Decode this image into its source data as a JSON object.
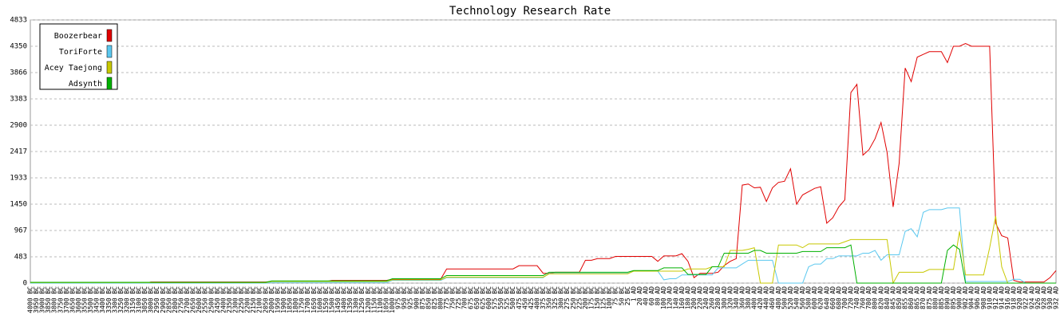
{
  "chart_data": {
    "type": "line",
    "title": "Technology Research Rate",
    "categories": [
      "4000 BC",
      "3950 BC",
      "3900 BC",
      "3850 BC",
      "3800 BC",
      "3750 BC",
      "3700 BC",
      "3650 BC",
      "3600 BC",
      "3550 BC",
      "3500 BC",
      "3450 BC",
      "3400 BC",
      "3350 BC",
      "3300 BC",
      "3250 BC",
      "3200 BC",
      "3150 BC",
      "3100 BC",
      "3050 BC",
      "3000 BC",
      "2950 BC",
      "2900 BC",
      "2850 BC",
      "2800 BC",
      "2750 BC",
      "2700 BC",
      "2650 BC",
      "2600 BC",
      "2550 BC",
      "2500 BC",
      "2450 BC",
      "2400 BC",
      "2350 BC",
      "2300 BC",
      "2250 BC",
      "2200 BC",
      "2150 BC",
      "2100 BC",
      "2050 BC",
      "2000 BC",
      "1950 BC",
      "1900 BC",
      "1850 BC",
      "1800 BC",
      "1750 BC",
      "1700 BC",
      "1650 BC",
      "1600 BC",
      "1550 BC",
      "1500 BC",
      "1450 BC",
      "1400 BC",
      "1350 BC",
      "1300 BC",
      "1250 BC",
      "1200 BC",
      "1150 BC",
      "1100 BC",
      "1050 BC",
      "1000 BC",
      "975 BC",
      "950 BC",
      "925 BC",
      "900 BC",
      "875 BC",
      "850 BC",
      "825 BC",
      "800 BC",
      "775 BC",
      "750 BC",
      "725 BC",
      "700 BC",
      "675 BC",
      "650 BC",
      "625 BC",
      "600 BC",
      "575 BC",
      "550 BC",
      "525 BC",
      "500 BC",
      "475 BC",
      "450 BC",
      "425 BC",
      "400 BC",
      "375 BC",
      "350 BC",
      "325 BC",
      "300 BC",
      "275 BC",
      "250 BC",
      "225 BC",
      "200 BC",
      "175 BC",
      "150 BC",
      "125 BC",
      "100 BC",
      "75 BC",
      "50 BC",
      "25 BC",
      "1 AD",
      "20 AD",
      "40 AD",
      "60 AD",
      "80 AD",
      "100 AD",
      "120 AD",
      "140 AD",
      "160 AD",
      "180 AD",
      "200 AD",
      "220 AD",
      "240 AD",
      "260 AD",
      "280 AD",
      "300 AD",
      "320 AD",
      "340 AD",
      "360 AD",
      "380 AD",
      "400 AD",
      "420 AD",
      "440 AD",
      "460 AD",
      "480 AD",
      "500 AD",
      "520 AD",
      "540 AD",
      "560 AD",
      "580 AD",
      "600 AD",
      "620 AD",
      "640 AD",
      "660 AD",
      "680 AD",
      "700 AD",
      "720 AD",
      "740 AD",
      "760 AD",
      "780 AD",
      "800 AD",
      "820 AD",
      "840 AD",
      "845 AD",
      "850 AD",
      "855 AD",
      "860 AD",
      "865 AD",
      "870 AD",
      "875 AD",
      "880 AD",
      "885 AD",
      "890 AD",
      "895 AD",
      "900 AD",
      "902 AD",
      "904 AD",
      "906 AD",
      "908 AD",
      "910 AD",
      "912 AD",
      "914 AD",
      "916 AD",
      "918 AD",
      "920 AD",
      "922 AD",
      "924 AD",
      "926 AD",
      "928 AD",
      "930 AD",
      "932 AD"
    ],
    "series": [
      {
        "name": "Boozerbear",
        "color": "#e00000",
        "values": [
          0,
          0,
          0,
          0,
          0,
          0,
          0,
          0,
          0,
          0,
          0,
          0,
          0,
          0,
          0,
          0,
          0,
          0,
          0,
          0,
          20,
          20,
          20,
          20,
          20,
          20,
          20,
          20,
          20,
          20,
          20,
          20,
          20,
          20,
          20,
          20,
          20,
          20,
          20,
          20,
          30,
          30,
          30,
          30,
          30,
          30,
          30,
          30,
          30,
          30,
          50,
          50,
          50,
          50,
          50,
          50,
          50,
          50,
          50,
          50,
          70,
          70,
          70,
          70,
          70,
          70,
          70,
          70,
          70,
          260,
          260,
          260,
          260,
          260,
          260,
          260,
          260,
          260,
          260,
          260,
          260,
          320,
          320,
          320,
          320,
          180,
          180,
          200,
          200,
          200,
          200,
          200,
          420,
          420,
          450,
          450,
          450,
          490,
          490,
          490,
          490,
          490,
          490,
          490,
          400,
          500,
          500,
          500,
          540,
          400,
          100,
          180,
          180,
          180,
          200,
          320,
          400,
          450,
          1800,
          1820,
          1750,
          1760,
          1500,
          1750,
          1850,
          1870,
          2100,
          1450,
          1620,
          1680,
          1740,
          1770,
          1100,
          1200,
          1400,
          1530,
          3500,
          3650,
          2350,
          2450,
          2650,
          2950,
          2400,
          1400,
          2200,
          3950,
          3700,
          4150,
          4200,
          4250,
          4250,
          4250,
          4050,
          4350,
          4350,
          4400,
          4350,
          4350,
          4350,
          4350,
          1100,
          870,
          830,
          50,
          20,
          20,
          20,
          20,
          20,
          100,
          230
        ]
      },
      {
        "name": "ToriForte",
        "color": "#5bc8ef",
        "values": [
          0,
          0,
          0,
          0,
          0,
          0,
          0,
          0,
          0,
          0,
          0,
          0,
          0,
          0,
          0,
          0,
          0,
          0,
          0,
          0,
          0,
          0,
          0,
          0,
          0,
          0,
          0,
          0,
          0,
          0,
          0,
          0,
          0,
          0,
          0,
          0,
          0,
          0,
          0,
          0,
          10,
          10,
          10,
          10,
          10,
          10,
          10,
          10,
          10,
          10,
          10,
          10,
          10,
          10,
          10,
          10,
          10,
          10,
          10,
          10,
          50,
          50,
          50,
          50,
          50,
          50,
          50,
          50,
          50,
          100,
          100,
          100,
          100,
          100,
          100,
          100,
          100,
          100,
          100,
          100,
          100,
          100,
          100,
          100,
          100,
          100,
          180,
          180,
          180,
          180,
          180,
          180,
          180,
          180,
          180,
          180,
          180,
          180,
          180,
          180,
          220,
          220,
          220,
          220,
          220,
          60,
          80,
          80,
          150,
          150,
          150,
          150,
          150,
          150,
          280,
          280,
          280,
          280,
          350,
          420,
          420,
          420,
          420,
          420,
          0,
          0,
          0,
          0,
          0,
          300,
          350,
          350,
          450,
          450,
          500,
          500,
          500,
          500,
          550,
          550,
          600,
          420,
          520,
          520,
          520,
          950,
          1000,
          850,
          1300,
          1350,
          1350,
          1350,
          1380,
          1380,
          1380,
          30,
          30,
          30,
          30,
          30,
          30,
          30,
          30,
          70,
          70,
          0,
          0,
          0,
          0,
          0,
          0
        ]
      },
      {
        "name": "Acey Taejong",
        "color": "#c8c800",
        "values": [
          10,
          10,
          10,
          10,
          10,
          10,
          10,
          10,
          10,
          10,
          10,
          10,
          10,
          10,
          10,
          10,
          10,
          10,
          10,
          10,
          10,
          10,
          10,
          10,
          10,
          10,
          10,
          10,
          10,
          10,
          10,
          10,
          10,
          10,
          10,
          10,
          10,
          10,
          10,
          10,
          30,
          30,
          30,
          30,
          30,
          30,
          30,
          30,
          30,
          30,
          30,
          30,
          30,
          30,
          30,
          30,
          30,
          30,
          30,
          30,
          60,
          60,
          60,
          60,
          60,
          60,
          60,
          60,
          60,
          110,
          110,
          110,
          110,
          110,
          110,
          110,
          110,
          110,
          110,
          110,
          110,
          110,
          110,
          110,
          110,
          110,
          170,
          170,
          170,
          170,
          170,
          170,
          170,
          170,
          170,
          170,
          170,
          170,
          170,
          170,
          220,
          220,
          220,
          220,
          220,
          220,
          220,
          220,
          220,
          260,
          260,
          260,
          260,
          300,
          300,
          300,
          600,
          600,
          600,
          620,
          650,
          0,
          0,
          0,
          700,
          700,
          700,
          700,
          650,
          720,
          720,
          720,
          720,
          720,
          720,
          760,
          800,
          800,
          800,
          800,
          800,
          800,
          800,
          0,
          200,
          200,
          200,
          200,
          200,
          250,
          250,
          250,
          250,
          250,
          950,
          150,
          150,
          150,
          150,
          650,
          1230,
          300,
          0,
          0,
          0,
          0,
          0,
          0,
          0,
          0,
          0
        ]
      },
      {
        "name": "Adsynth",
        "color": "#00b000",
        "values": [
          15,
          15,
          15,
          15,
          15,
          15,
          15,
          15,
          15,
          15,
          15,
          15,
          15,
          15,
          15,
          15,
          15,
          15,
          15,
          15,
          15,
          15,
          15,
          15,
          15,
          15,
          15,
          15,
          15,
          15,
          15,
          15,
          15,
          15,
          15,
          15,
          15,
          15,
          15,
          15,
          40,
          40,
          40,
          40,
          40,
          40,
          40,
          40,
          40,
          40,
          40,
          40,
          40,
          40,
          40,
          40,
          40,
          40,
          40,
          40,
          80,
          80,
          80,
          80,
          80,
          80,
          80,
          80,
          80,
          140,
          140,
          140,
          140,
          140,
          140,
          140,
          140,
          140,
          140,
          140,
          140,
          140,
          140,
          140,
          140,
          140,
          200,
          200,
          200,
          200,
          200,
          200,
          200,
          200,
          200,
          200,
          200,
          200,
          200,
          200,
          230,
          230,
          230,
          230,
          230,
          280,
          280,
          280,
          280,
          160,
          160,
          160,
          160,
          300,
          300,
          550,
          550,
          550,
          550,
          550,
          600,
          600,
          550,
          550,
          550,
          550,
          550,
          550,
          580,
          580,
          580,
          580,
          650,
          650,
          650,
          650,
          700,
          0,
          0,
          0,
          0,
          0,
          0,
          0,
          0,
          0,
          0,
          0,
          0,
          0,
          0,
          0,
          600,
          700,
          620,
          0,
          0,
          0,
          0,
          0,
          0,
          0,
          0,
          0,
          0,
          0,
          0,
          0,
          0,
          0,
          0
        ]
      }
    ],
    "ylim": [
      0,
      4833
    ],
    "yticks": [
      0,
      483,
      967,
      1450,
      1933,
      2417,
      2900,
      3383,
      3866,
      4350,
      4833
    ],
    "grid": true,
    "legend": "top-left"
  }
}
